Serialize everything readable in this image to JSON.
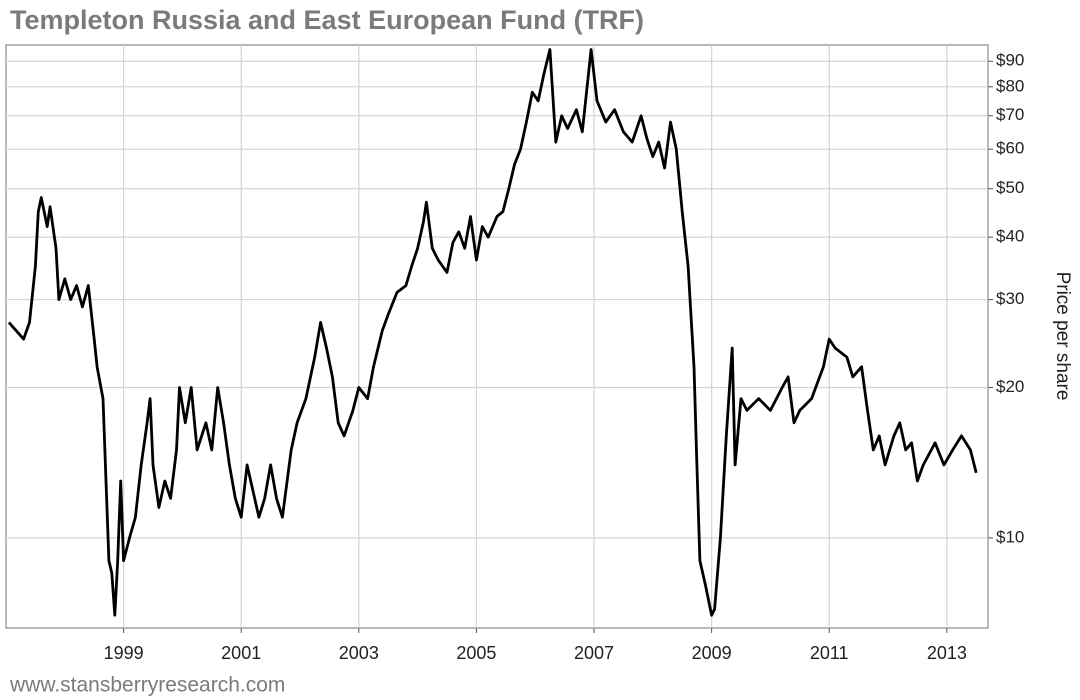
{
  "chart_data": {
    "type": "line",
    "title": "Templeton Russia and East European Fund (TRF)",
    "y_label": "Price per share",
    "source": "www.stansberryresearch.com",
    "log_scale": true,
    "grid": true,
    "x": [
      1997.05,
      1997.3,
      1997.4,
      1997.5,
      1997.55,
      1997.6,
      1997.7,
      1997.75,
      1997.85,
      1997.9,
      1998.0,
      1998.1,
      1998.2,
      1998.3,
      1998.4,
      1998.5,
      1998.55,
      1998.65,
      1998.75,
      1998.8,
      1998.85,
      1998.9,
      1998.95,
      1999.0,
      1999.1,
      1999.2,
      1999.3,
      1999.4,
      1999.45,
      1999.5,
      1999.6,
      1999.7,
      1999.8,
      1999.9,
      1999.95,
      2000.05,
      2000.15,
      2000.25,
      2000.4,
      2000.5,
      2000.6,
      2000.7,
      2000.8,
      2000.9,
      2001.0,
      2001.1,
      2001.3,
      2001.4,
      2001.5,
      2001.6,
      2001.7,
      2001.85,
      2001.95,
      2002.1,
      2002.25,
      2002.35,
      2002.45,
      2002.55,
      2002.65,
      2002.75,
      2002.9,
      2003.0,
      2003.15,
      2003.25,
      2003.4,
      2003.5,
      2003.65,
      2003.8,
      2003.9,
      2004.0,
      2004.1,
      2004.15,
      2004.25,
      2004.35,
      2004.5,
      2004.6,
      2004.7,
      2004.8,
      2004.9,
      2005.0,
      2005.1,
      2005.2,
      2005.35,
      2005.45,
      2005.55,
      2005.65,
      2005.75,
      2005.85,
      2005.95,
      2006.05,
      2006.15,
      2006.25,
      2006.35,
      2006.45,
      2006.55,
      2006.7,
      2006.8,
      2006.95,
      2007.05,
      2007.2,
      2007.35,
      2007.5,
      2007.65,
      2007.8,
      2007.9,
      2008.0,
      2008.1,
      2008.2,
      2008.3,
      2008.4,
      2008.5,
      2008.6,
      2008.7,
      2008.75,
      2008.8,
      2008.9,
      2009.0,
      2009.05,
      2009.15,
      2009.25,
      2009.35,
      2009.4,
      2009.5,
      2009.6,
      2009.8,
      2010.0,
      2010.2,
      2010.3,
      2010.4,
      2010.5,
      2010.7,
      2010.9,
      2011.0,
      2011.1,
      2011.3,
      2011.4,
      2011.55,
      2011.65,
      2011.75,
      2011.85,
      2011.95,
      2012.1,
      2012.2,
      2012.3,
      2012.4,
      2012.5,
      2012.6,
      2012.8,
      2012.95,
      2013.1,
      2013.25,
      2013.4,
      2013.5
    ],
    "series": [
      {
        "name": "TRF",
        "color": "#000000",
        "values": [
          27,
          25,
          27,
          35,
          45,
          48,
          42,
          46,
          38,
          30,
          33,
          30,
          32,
          29,
          32,
          25,
          22,
          19,
          9,
          8.5,
          7,
          9,
          13,
          9,
          10,
          11,
          14,
          17,
          19,
          14,
          11.5,
          13,
          12,
          15,
          20,
          17,
          20,
          15,
          17,
          15,
          20,
          17,
          14,
          12,
          11,
          14,
          11,
          12,
          14,
          12,
          11,
          15,
          17,
          19,
          23,
          27,
          24,
          21,
          17,
          16,
          18,
          20,
          19,
          22,
          26,
          28,
          31,
          32,
          35,
          38,
          43,
          47,
          38,
          36,
          34,
          39,
          41,
          38,
          44,
          36,
          42,
          40,
          44,
          45,
          50,
          56,
          60,
          68,
          78,
          75,
          85,
          95,
          62,
          70,
          66,
          72,
          65,
          95,
          75,
          68,
          72,
          65,
          62,
          70,
          63,
          58,
          62,
          55,
          68,
          60,
          45,
          35,
          22,
          14,
          9,
          8,
          7,
          7.2,
          10,
          16,
          24,
          14,
          19,
          18,
          19,
          18,
          20,
          21,
          17,
          18,
          19,
          22,
          25,
          24,
          23,
          21,
          22,
          18,
          15,
          16,
          14,
          16,
          17,
          15,
          15.5,
          13,
          14,
          15.5,
          14,
          15,
          16,
          15,
          13.5
        ]
      }
    ],
    "xlim": [
      1997.0,
      2013.7
    ],
    "xticks": [
      1999,
      2001,
      2003,
      2005,
      2007,
      2009,
      2011,
      2013
    ],
    "ylim": [
      6.6,
      97
    ],
    "yticks": [
      {
        "value": 10,
        "label": "$10"
      },
      {
        "value": 20,
        "label": "$20"
      },
      {
        "value": 30,
        "label": "$30"
      },
      {
        "value": 40,
        "label": "$40"
      },
      {
        "value": 50,
        "label": "$50"
      },
      {
        "value": 60,
        "label": "$60"
      },
      {
        "value": 70,
        "label": "$70"
      },
      {
        "value": 80,
        "label": "$80"
      },
      {
        "value": 90,
        "label": "$90"
      }
    ]
  }
}
